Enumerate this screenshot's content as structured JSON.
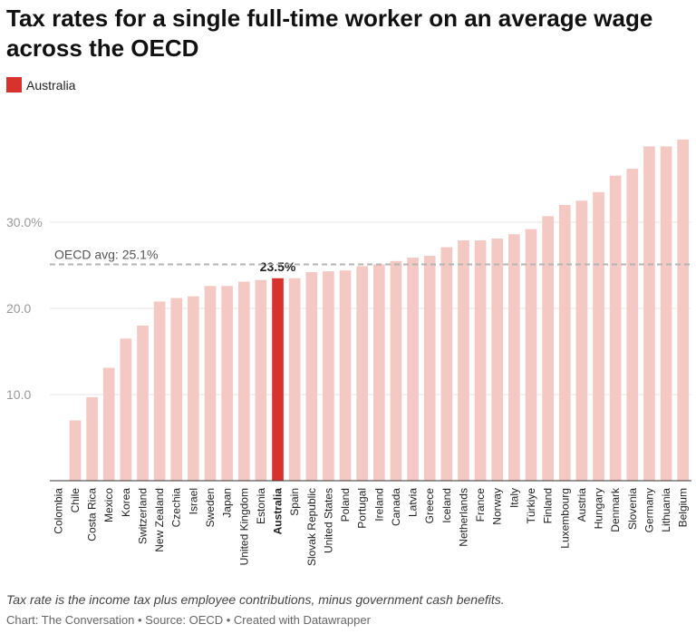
{
  "title": "Tax rates for a single full-time worker on an average wage across the OECD",
  "legend": {
    "label": "Australia",
    "color": "#d7322d"
  },
  "notes": "Tax rate is the income tax plus employee contributions, minus government cash benefits.",
  "credits": "Chart: The Conversation • Source: OECD • Created with Datawrapper",
  "chart_data": {
    "type": "bar",
    "highlight": "Australia",
    "highlight_label": "23.5%",
    "colors": {
      "bar": "#f4c8c3",
      "highlight": "#d7322d",
      "reference_line": "#b5b5b5",
      "grid": "#e6e6e6",
      "tick_text": "#999999"
    },
    "ylim": [
      0,
      40
    ],
    "y_ticks": [
      10,
      20,
      30
    ],
    "y_tick_labels": [
      "10.0",
      "20.0",
      "30.0%"
    ],
    "grid": true,
    "reference_line": {
      "value": 25.1,
      "label": "OECD avg: 25.1%"
    },
    "categories": [
      "Colombia",
      "Chile",
      "Costa Rica",
      "Mexico",
      "Korea",
      "Switzerland",
      "New Zealand",
      "Czechia",
      "Israel",
      "Sweden",
      "Japan",
      "United Kingdom",
      "Estonia",
      "Australia",
      "Spain",
      "Slovak Republic",
      "United States",
      "Poland",
      "Portugal",
      "Ireland",
      "Canada",
      "Latvia",
      "Greece",
      "Iceland",
      "Netherlands",
      "France",
      "Norway",
      "Italy",
      "Türkiye",
      "Finland",
      "Luxembourg",
      "Austria",
      "Hungary",
      "Denmark",
      "Slovenia",
      "Germany",
      "Lithuania",
      "Belgium"
    ],
    "values": [
      0,
      7.0,
      9.7,
      13.1,
      16.5,
      18.0,
      20.8,
      21.2,
      21.4,
      22.6,
      22.6,
      23.1,
      23.3,
      23.5,
      23.5,
      24.2,
      24.3,
      24.4,
      24.9,
      25.1,
      25.5,
      25.9,
      26.1,
      27.1,
      27.9,
      27.9,
      28.1,
      28.6,
      29.2,
      30.7,
      32.0,
      32.5,
      33.5,
      35.4,
      36.2,
      38.8,
      38.8,
      39.6
    ]
  }
}
